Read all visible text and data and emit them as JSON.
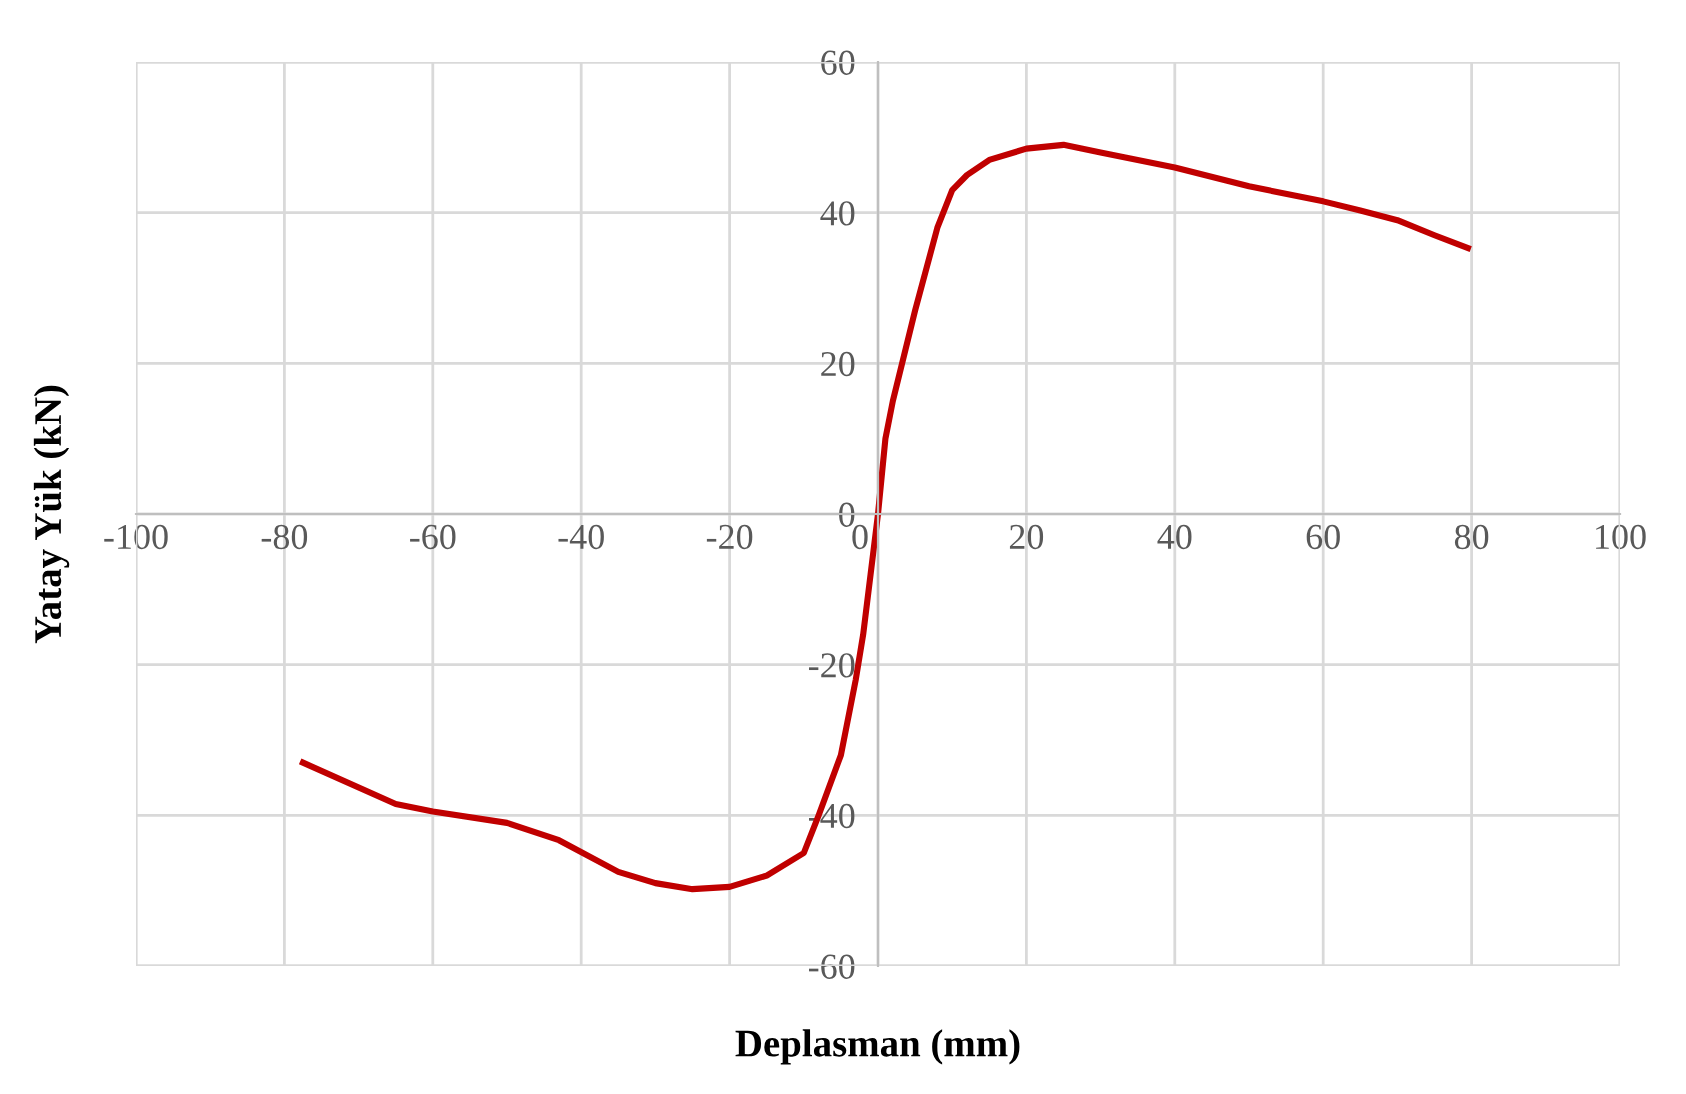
{
  "chart_data": {
    "type": "line",
    "xlabel": "Deplasman (mm)",
    "ylabel": "Yatay Yük (kN)",
    "xlim": [
      -100,
      100
    ],
    "ylim": [
      -60,
      60
    ],
    "xticks": [
      -100,
      -80,
      -60,
      -40,
      -20,
      0,
      20,
      40,
      60,
      80,
      100
    ],
    "yticks": [
      -60,
      -40,
      -20,
      0,
      20,
      40,
      60
    ],
    "grid": true,
    "marker": "none",
    "line_style": "solid",
    "series": [
      {
        "color": "#c00000",
        "x": [
          -77.5,
          -65,
          -60,
          -50,
          -43,
          -35,
          -30,
          -25,
          -20,
          -15,
          -10,
          -8,
          -5,
          -3,
          -2,
          -1,
          0,
          1,
          2,
          5,
          8,
          10,
          12,
          15,
          20,
          25,
          30,
          40,
          50,
          60,
          65,
          70,
          75,
          79.5
        ],
        "values": [
          -33,
          -38.5,
          -39.5,
          -41,
          -43.3,
          -47.5,
          -49,
          -49.8,
          -49.5,
          -48,
          -45,
          -40,
          -32,
          -22,
          -16,
          -8,
          0,
          10,
          15,
          27,
          38,
          43,
          45,
          47,
          48.5,
          49,
          48,
          46,
          43.5,
          41.5,
          40.3,
          39,
          37,
          35.3
        ]
      }
    ]
  }
}
